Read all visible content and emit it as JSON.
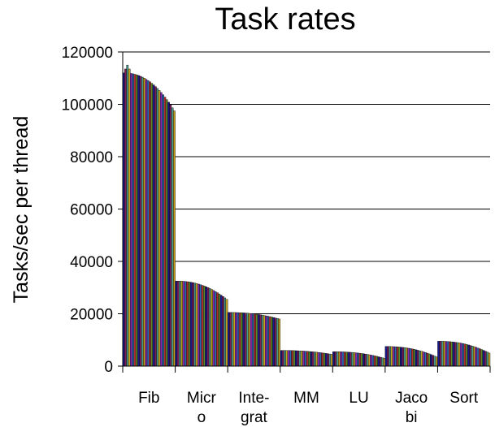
{
  "chart_data": {
    "type": "bar",
    "title": "Task rates",
    "xlabel": "",
    "ylabel": "Tasks/sec per thread",
    "ylim": [
      0,
      120000
    ],
    "yticks": [
      0,
      20000,
      40000,
      60000,
      80000,
      100000,
      120000
    ],
    "ytick_labels": [
      "0",
      "20000",
      "40000",
      "60000",
      "80000",
      "100000",
      "120000"
    ],
    "grid": true,
    "bars_per_group": 28,
    "bar_palette": [
      "#1a1a8c",
      "#7a1f5c",
      "#4a9a8a",
      "#c4a020",
      "#8a2ab0",
      "#2a6ab0",
      "#b03030",
      "#5a8a2a"
    ],
    "categories": [
      {
        "name": "Fib",
        "label_lines": [
          "Fib"
        ],
        "start": 112000,
        "end": 97500,
        "peak": 115000
      },
      {
        "name": "Micro",
        "label_lines": [
          "Micr",
          "o"
        ],
        "start": 32500,
        "end": 25500
      },
      {
        "name": "Integrat",
        "label_lines": [
          "Inte-",
          "grat"
        ],
        "start": 20500,
        "end": 18000
      },
      {
        "name": "MM",
        "label_lines": [
          "MM"
        ],
        "start": 6000,
        "end": 4500
      },
      {
        "name": "LU",
        "label_lines": [
          "LU"
        ],
        "start": 5500,
        "end": 3000
      },
      {
        "name": "Jacobi",
        "label_lines": [
          "Jaco",
          "bi"
        ],
        "start": 7500,
        "end": 3500
      },
      {
        "name": "Sort",
        "label_lines": [
          "Sort"
        ],
        "start": 9500,
        "end": 5000
      }
    ]
  }
}
